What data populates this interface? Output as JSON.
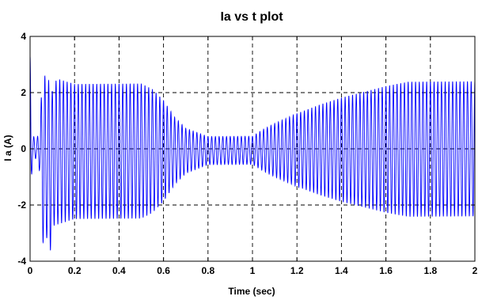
{
  "chart_data": {
    "type": "line",
    "title": "Ia vs t plot",
    "xlabel": "Time (sec)",
    "ylabel": "I a  (A)",
    "xlim": [
      0,
      2
    ],
    "ylim": [
      -4,
      4
    ],
    "xticks": [
      0,
      0.2,
      0.4,
      0.6,
      0.8,
      1,
      1.2,
      1.4,
      1.6,
      1.8,
      2
    ],
    "xtick_labels": [
      "0",
      "0.2",
      "0.4",
      "0.6",
      "0.8",
      "1",
      "1.2",
      "1.4",
      "1.6",
      "1.8",
      "2"
    ],
    "yticks": [
      -4,
      -2,
      0,
      2,
      4
    ],
    "ytick_labels": [
      "-4",
      "-2",
      "0",
      "2",
      "4"
    ],
    "grid": true,
    "line_color": "#0000ff",
    "series": [
      {
        "frequency_hz": 60,
        "envelope": {
          "t": [
            0,
            0.003,
            0.006,
            0.01,
            0.02,
            0.03,
            0.045,
            0.055,
            0.065,
            0.075,
            0.09,
            0.1,
            0.12,
            0.2,
            0.3,
            0.4,
            0.5,
            0.55,
            0.6,
            0.65,
            0.7,
            0.75,
            0.8,
            0.85,
            0.9,
            0.95,
            1.0,
            1.05,
            1.1,
            1.2,
            1.3,
            1.4,
            1.5,
            1.6,
            1.7,
            1.75,
            1.8,
            1.9,
            2.0
          ],
          "amplitude": [
            3.3,
            3.3,
            1.2,
            0.5,
            0.4,
            0.3,
            0.9,
            2.9,
            3.2,
            2.6,
            3.3,
            2.4,
            2.6,
            2.4,
            2.4,
            2.4,
            2.4,
            2.2,
            1.8,
            1.2,
            0.8,
            0.65,
            0.5,
            0.5,
            0.5,
            0.5,
            0.5,
            0.75,
            0.95,
            1.3,
            1.6,
            1.85,
            2.05,
            2.25,
            2.4,
            2.4,
            2.4,
            2.4,
            2.4
          ]
        },
        "offset": {
          "t": [
            0,
            0.003,
            0.006,
            0.045,
            0.065,
            0.08,
            0.12,
            2.0
          ],
          "value": [
            0,
            0,
            0,
            0,
            -0.5,
            -0.6,
            -0.1,
            0
          ]
        }
      }
    ]
  }
}
